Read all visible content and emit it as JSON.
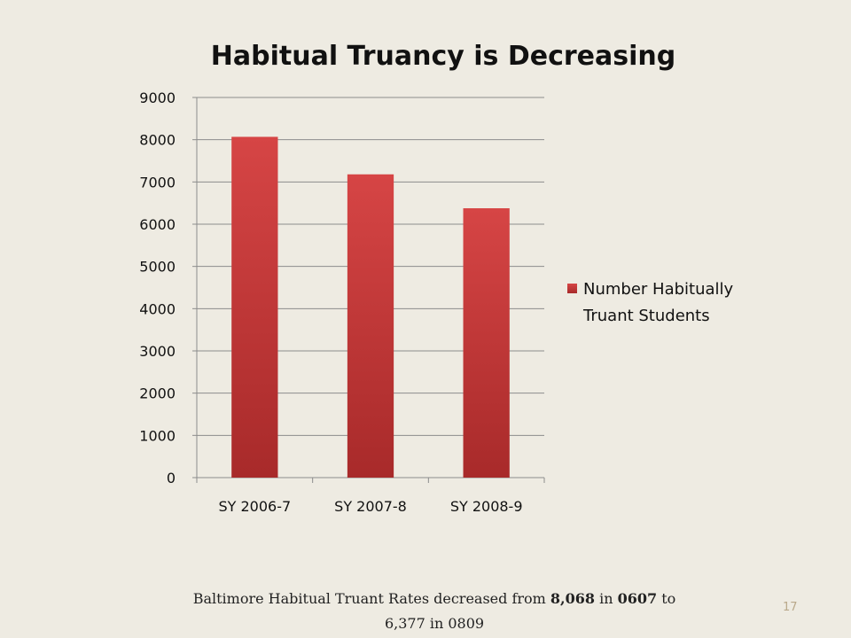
{
  "slide": {
    "caption_part1": "Baltimore Habitual Truant Rates decreased from ",
    "caption_bold1": "8,068",
    "caption_part2": " in ",
    "caption_bold2": "0607",
    "caption_part3": " to 6,377 in 0809",
    "page_number": "17"
  },
  "chart_data": {
    "type": "bar",
    "title": "Habitual Truancy is Decreasing",
    "categories": [
      "SY 2006-7",
      "SY 2007-8",
      "SY 2008-9"
    ],
    "series": [
      {
        "name": "Number Habitually Truant Students",
        "values": [
          8068,
          7180,
          6377
        ]
      }
    ],
    "ylim": [
      0,
      9000
    ],
    "yticks": [
      0,
      1000,
      2000,
      3000,
      4000,
      5000,
      6000,
      7000,
      8000,
      9000
    ],
    "grid": true,
    "legend": "right",
    "bar_color_top": "#d64545",
    "bar_color_bottom": "#a82a2a"
  }
}
